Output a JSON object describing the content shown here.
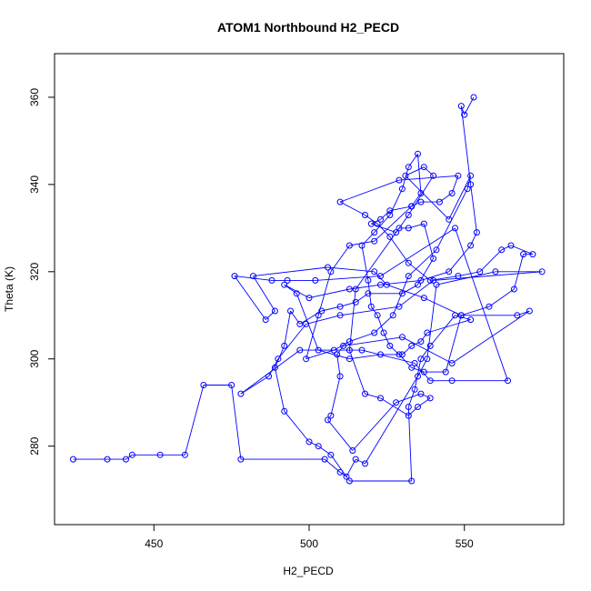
{
  "chart_data": {
    "type": "scatter",
    "title": "ATOM1 Northbound H2_PECD",
    "xlabel": "H2_PECD",
    "ylabel": "Theta (K)",
    "xlim": [
      418,
      582
    ],
    "ylim": [
      262,
      370
    ],
    "x_ticks": [
      450,
      500,
      550
    ],
    "y_ticks": [
      280,
      300,
      320,
      340,
      360
    ],
    "grid": false,
    "legend": "none",
    "mode": "points+lines",
    "marker": "open-circle",
    "color": "#0000ff",
    "points": [
      [
        424,
        277
      ],
      [
        435,
        277
      ],
      [
        441,
        277
      ],
      [
        443,
        278
      ],
      [
        452,
        278
      ],
      [
        460,
        278
      ],
      [
        466,
        294
      ],
      [
        475,
        294
      ],
      [
        478,
        277
      ],
      [
        505,
        277
      ],
      [
        510,
        274
      ],
      [
        512,
        273
      ],
      [
        515,
        277
      ],
      [
        518,
        276
      ],
      [
        535,
        296
      ],
      [
        538,
        300
      ],
      [
        541,
        317
      ],
      [
        560,
        320
      ],
      [
        575,
        320
      ],
      [
        540,
        318
      ],
      [
        529,
        312
      ],
      [
        510,
        310
      ],
      [
        499,
        308
      ],
      [
        490,
        300
      ],
      [
        487,
        296
      ],
      [
        478,
        292
      ],
      [
        497,
        302
      ],
      [
        517,
        302
      ],
      [
        534,
        299
      ],
      [
        539,
        295
      ],
      [
        546,
        295
      ],
      [
        564,
        295
      ],
      [
        547,
        330
      ],
      [
        523,
        319
      ],
      [
        502,
        318
      ],
      [
        493,
        318
      ],
      [
        488,
        318
      ],
      [
        476,
        319
      ],
      [
        486,
        309
      ],
      [
        489,
        311
      ],
      [
        482,
        319
      ],
      [
        506,
        321
      ],
      [
        521,
        320
      ],
      [
        525,
        317
      ],
      [
        537,
        314
      ],
      [
        549,
        310
      ],
      [
        567,
        310
      ],
      [
        571,
        311
      ],
      [
        546,
        299
      ],
      [
        530,
        305
      ],
      [
        511,
        303
      ],
      [
        509,
        301
      ],
      [
        510,
        296
      ],
      [
        507,
        287
      ],
      [
        506,
        286
      ],
      [
        514,
        279
      ],
      [
        528,
        290
      ],
      [
        536,
        292
      ],
      [
        539,
        291
      ],
      [
        535,
        289
      ],
      [
        532,
        287
      ],
      [
        523,
        291
      ],
      [
        518,
        292
      ],
      [
        513,
        302
      ],
      [
        515,
        316
      ],
      [
        532,
        333
      ],
      [
        540,
        342
      ],
      [
        537,
        344
      ],
      [
        531,
        342
      ],
      [
        545,
        332
      ],
      [
        552,
        342
      ],
      [
        551,
        339
      ],
      [
        541,
        325
      ],
      [
        532,
        319
      ],
      [
        527,
        310
      ],
      [
        521,
        306
      ],
      [
        513,
        304
      ],
      [
        508,
        302
      ],
      [
        499,
        300
      ],
      [
        503,
        310
      ],
      [
        507,
        320
      ],
      [
        513,
        326
      ],
      [
        521,
        327
      ],
      [
        533,
        335
      ],
      [
        536,
        338
      ],
      [
        535,
        347
      ],
      [
        532,
        344
      ],
      [
        530,
        339
      ],
      [
        526,
        333
      ],
      [
        521,
        329
      ],
      [
        517,
        326
      ],
      [
        519,
        318
      ],
      [
        520,
        312
      ],
      [
        522,
        310
      ],
      [
        524,
        306
      ],
      [
        526,
        303
      ],
      [
        529,
        301
      ],
      [
        533,
        298
      ],
      [
        537,
        297
      ],
      [
        544,
        297
      ],
      [
        549,
        310
      ],
      [
        558,
        312
      ],
      [
        566,
        316
      ],
      [
        569,
        324
      ],
      [
        572,
        324
      ],
      [
        565,
        326
      ],
      [
        562,
        325
      ],
      [
        555,
        320
      ],
      [
        548,
        319
      ],
      [
        539,
        318
      ],
      [
        532,
        322
      ],
      [
        526,
        328
      ],
      [
        522,
        331
      ],
      [
        518,
        333
      ],
      [
        510,
        336
      ],
      [
        529,
        341
      ],
      [
        548,
        342
      ],
      [
        546,
        338
      ],
      [
        542,
        336
      ],
      [
        536,
        336
      ],
      [
        533,
        335
      ],
      [
        526,
        334
      ],
      [
        523,
        332
      ],
      [
        520,
        331
      ],
      [
        528,
        329
      ],
      [
        529,
        330
      ],
      [
        532,
        330
      ],
      [
        537,
        331
      ],
      [
        540,
        323
      ],
      [
        535,
        317
      ],
      [
        530,
        315
      ],
      [
        519,
        315
      ],
      [
        515,
        313
      ],
      [
        510,
        312
      ],
      [
        504,
        311
      ],
      [
        497,
        308
      ],
      [
        494,
        311
      ],
      [
        492,
        303
      ],
      [
        489,
        298
      ],
      [
        492,
        288
      ],
      [
        500,
        281
      ],
      [
        503,
        280
      ],
      [
        507,
        278
      ],
      [
        513,
        272
      ],
      [
        533,
        272
      ],
      [
        532,
        289
      ],
      [
        534,
        293
      ],
      [
        536,
        300
      ],
      [
        539,
        303
      ],
      [
        547,
        310
      ],
      [
        552,
        309
      ],
      [
        538,
        306
      ],
      [
        536,
        304
      ],
      [
        533,
        303
      ],
      [
        530,
        301
      ],
      [
        523,
        301
      ],
      [
        513,
        300
      ],
      [
        503,
        302
      ],
      [
        496,
        315
      ],
      [
        492,
        317
      ],
      [
        500,
        314
      ],
      [
        513,
        316
      ],
      [
        523,
        317
      ],
      [
        536,
        318
      ],
      [
        545,
        320
      ],
      [
        552,
        326
      ],
      [
        554,
        329
      ],
      [
        552,
        340
      ],
      [
        549,
        358
      ],
      [
        550,
        356
      ],
      [
        553,
        360
      ]
    ]
  }
}
